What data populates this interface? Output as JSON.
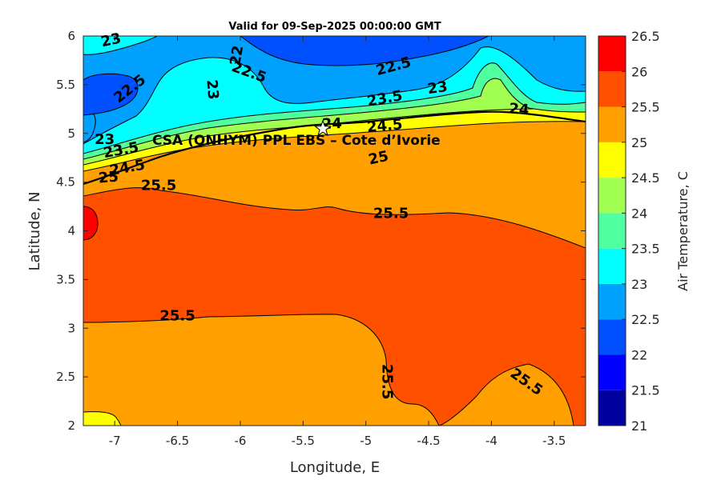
{
  "chart_data": {
    "type": "heatmap",
    "subtype": "filled-contour",
    "title": "Valid for 09-Sep-2025 00:00:00 GMT",
    "xlabel": "Longitude, E",
    "ylabel": "Latitude, N",
    "xlim": [
      -7.25,
      -3.25
    ],
    "ylim": [
      2,
      6
    ],
    "xticks": [
      "-7",
      "-6.5",
      "-6",
      "-5.5",
      "-5",
      "-4.5",
      "-4",
      "-3.5"
    ],
    "yticks": [
      "2",
      "2.5",
      "3",
      "3.5",
      "4",
      "4.5",
      "5",
      "5.5",
      "6"
    ],
    "colorbar": {
      "label": "Air Temperature, C",
      "range": [
        21,
        26.5
      ],
      "ticks": [
        "21",
        "21.5",
        "22",
        "22.5",
        "23",
        "23.5",
        "24",
        "24.5",
        "25",
        "25.5",
        "26",
        "26.5"
      ],
      "levels": [
        21,
        21.5,
        22,
        22.5,
        23,
        23.5,
        24,
        24.5,
        25,
        25.5,
        26,
        26.5
      ],
      "colors": [
        "#00009f",
        "#0000ff",
        "#0050ff",
        "#00a0ff",
        "#00ffff",
        "#50ffa0",
        "#a0ff50",
        "#ffff00",
        "#ffa000",
        "#ff5000",
        "#ff0000",
        "#a00000"
      ]
    },
    "regions": [
      {
        "level": 25.0,
        "description": "orange band lat 4.5-4.8 (north of 25.5 contour) and lat 2-3.1 south-west"
      },
      {
        "level": 25.5,
        "description": "dark orange band lat ~3.1-4.5 across domain, extending south to lat 2 around lon -4.8 to -3.7"
      },
      {
        "level": 26.0,
        "description": "small red patch near lon -7.2, lat 4.0"
      },
      {
        "level": 24.5,
        "description": "yellow band along coast lat ~4.8-5.1; small patch near lon -7, lat 2.1"
      },
      {
        "level": 23.0,
        "description": "cyan offshore-north area lat 5.2-5.8"
      },
      {
        "level": 22.5,
        "description": "light blue area north lat 5.3-6 and west near lon -7"
      },
      {
        "level": 22.0,
        "description": "blue patches near lon -6.8, lat 5.4 and lon -5.5, lat 5.8"
      }
    ],
    "contour_labels": [
      "23",
      "22.5",
      "22",
      "22.5",
      "23",
      "22.5",
      "23",
      "23.5",
      "24",
      "24",
      "24.5",
      "23",
      "23.5",
      "24.5",
      "25",
      "25",
      "25.5",
      "25.5",
      "25.5",
      "25.5",
      "25.5"
    ],
    "station": {
      "name": "CSA (ONHYM) PPL EBS  – Cote d’Ivorie",
      "lon": -5.35,
      "lat": 5.05,
      "marker": "star"
    }
  }
}
